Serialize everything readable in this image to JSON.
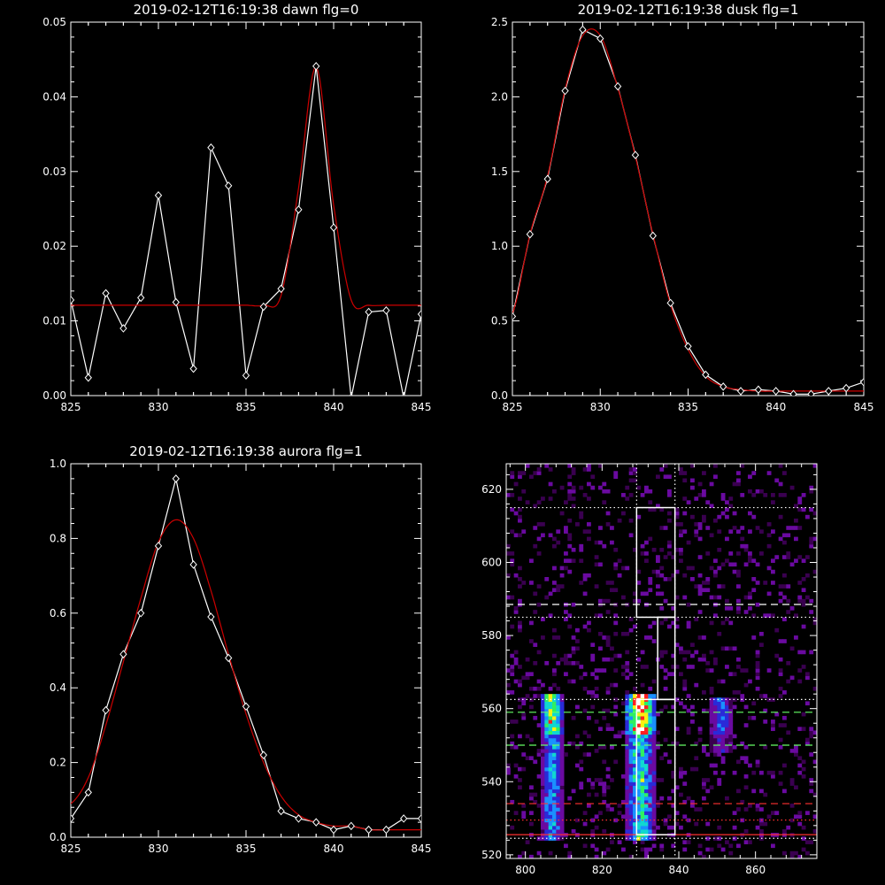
{
  "chart_data": [
    {
      "type": "line",
      "title": "2019-02-12T16:19:38 dawn flg=0",
      "xlim": [
        825,
        845
      ],
      "ylim": [
        0,
        0.05
      ],
      "xticks": [
        "825",
        "830",
        "835",
        "840",
        "845"
      ],
      "yticks": [
        "0.00",
        "0.01",
        "0.02",
        "0.03",
        "0.04",
        "0.05"
      ],
      "series": [
        {
          "color": "#ffffff",
          "markers": "diamond",
          "x": [
            825,
            826,
            827,
            828,
            829,
            830,
            831,
            832,
            833,
            834,
            835,
            836,
            837,
            838,
            839,
            840,
            841,
            842,
            843,
            844,
            845
          ],
          "y": [
            0.0128,
            0.0024,
            0.0137,
            0.009,
            0.0131,
            0.0268,
            0.0125,
            0.0036,
            0.0332,
            0.0281,
            0.0027,
            0.0119,
            0.0143,
            0.0249,
            0.0441,
            0.0225,
            -0.0003,
            0.0112,
            0.0114,
            -0.0003,
            0.0109
          ]
        },
        {
          "color": "#cc0000",
          "markers": "none",
          "x": [
            825,
            826,
            827,
            828,
            829,
            830,
            831,
            832,
            833,
            834,
            835,
            836,
            837,
            838,
            839,
            840,
            841,
            842,
            843,
            844,
            845
          ],
          "y": [
            0.0121,
            0.0121,
            0.0121,
            0.0121,
            0.0121,
            0.0121,
            0.0121,
            0.0121,
            0.0121,
            0.0121,
            0.0121,
            0.0121,
            0.0134,
            0.0278,
            0.044,
            0.0255,
            0.0128,
            0.0121,
            0.0121,
            0.0121,
            0.0121
          ]
        }
      ]
    },
    {
      "type": "line",
      "title": "2019-02-12T16:19:38 dusk flg=1",
      "xlim": [
        825,
        845
      ],
      "ylim": [
        0,
        2.5
      ],
      "xticks": [
        "825",
        "830",
        "835",
        "840",
        "845"
      ],
      "yticks": [
        "0.0",
        "0.5",
        "1.0",
        "1.5",
        "2.0",
        "2.5"
      ],
      "series": [
        {
          "color": "#ffffff",
          "markers": "diamond",
          "x": [
            825,
            826,
            827,
            828,
            829,
            830,
            831,
            832,
            833,
            834,
            835,
            836,
            837,
            838,
            839,
            840,
            841,
            842,
            843,
            844,
            845
          ],
          "y": [
            0.53,
            1.08,
            1.45,
            2.04,
            2.45,
            2.39,
            2.07,
            1.61,
            1.07,
            0.62,
            0.33,
            0.14,
            0.06,
            0.03,
            0.04,
            0.03,
            0.01,
            0.01,
            0.03,
            0.05,
            0.09
          ]
        },
        {
          "color": "#cc0000",
          "markers": "none",
          "x": [
            825,
            826,
            827,
            828,
            829,
            830,
            831,
            832,
            833,
            834,
            835,
            836,
            837,
            838,
            839,
            840,
            841,
            842,
            843,
            844,
            845
          ],
          "y": [
            0.55,
            1.08,
            1.47,
            2.05,
            2.41,
            2.41,
            2.06,
            1.6,
            1.08,
            0.61,
            0.31,
            0.13,
            0.06,
            0.04,
            0.03,
            0.03,
            0.03,
            0.03,
            0.03,
            0.03,
            0.03
          ]
        }
      ]
    },
    {
      "type": "line",
      "title": "2019-02-12T16:19:38 aurora flg=1",
      "xlim": [
        825,
        845
      ],
      "ylim": [
        0,
        1.0
      ],
      "xticks": [
        "825",
        "830",
        "835",
        "840",
        "845"
      ],
      "yticks": [
        "0.0",
        "0.2",
        "0.4",
        "0.6",
        "0.8",
        "1.0"
      ],
      "series": [
        {
          "color": "#ffffff",
          "markers": "diamond",
          "x": [
            825,
            826,
            827,
            828,
            829,
            830,
            831,
            832,
            833,
            834,
            835,
            836,
            837,
            838,
            839,
            840,
            841,
            842,
            843,
            844,
            845
          ],
          "y": [
            0.05,
            0.12,
            0.34,
            0.49,
            0.6,
            0.78,
            0.96,
            0.73,
            0.59,
            0.48,
            0.35,
            0.22,
            0.07,
            0.05,
            0.04,
            0.02,
            0.03,
            0.02,
            0.02,
            0.05,
            0.05
          ]
        },
        {
          "color": "#cc0000",
          "markers": "none",
          "x": [
            825,
            826,
            827,
            828,
            829,
            830,
            831,
            832,
            833,
            834,
            835,
            836,
            837,
            838,
            839,
            840,
            841,
            842,
            843,
            844,
            845
          ],
          "y": [
            0.09,
            0.16,
            0.3,
            0.47,
            0.64,
            0.79,
            0.85,
            0.8,
            0.66,
            0.49,
            0.33,
            0.2,
            0.11,
            0.06,
            0.04,
            0.03,
            0.03,
            0.02,
            0.02,
            0.02,
            0.02
          ]
        }
      ]
    },
    {
      "type": "heatmap",
      "xlim": [
        795,
        876
      ],
      "ylim": [
        519,
        627
      ],
      "xticks": [
        "800",
        "820",
        "840",
        "860"
      ],
      "yticks": [
        "520",
        "540",
        "560",
        "580",
        "600",
        "620"
      ],
      "colormap": [
        "#3a0050",
        "#6a0aa0",
        "#2a2ad8",
        "#1a90ff",
        "#10d8d0",
        "#30f060",
        "#f8f010",
        "#ff2020",
        "#ffffff"
      ],
      "emission_columns": [
        {
          "x": 807,
          "y_range": [
            524,
            563
          ],
          "peak": 0.75
        },
        {
          "x": 830,
          "y_range": [
            524,
            563
          ],
          "peak": 1.0
        },
        {
          "x": 851,
          "y_range": [
            548,
            562
          ],
          "peak": 0.35
        }
      ],
      "hlines": [
        {
          "y": 615,
          "style": "dotted",
          "color": "#ffffff"
        },
        {
          "y": 588.5,
          "style": "dashed",
          "color": "#ffffff"
        },
        {
          "y": 585,
          "style": "dotted",
          "color": "#ffffff"
        },
        {
          "y": 562.5,
          "style": "dotted",
          "color": "#ffffff"
        },
        {
          "y": 559,
          "style": "dashed",
          "color": "#66ff66"
        },
        {
          "y": 550,
          "style": "dashed",
          "color": "#66ff66"
        },
        {
          "y": 534,
          "style": "dashed",
          "color": "#ff3030"
        },
        {
          "y": 529.5,
          "style": "dotted",
          "color": "#ff3030"
        },
        {
          "y": 525.5,
          "style": "solid",
          "color": "#ff3030"
        },
        {
          "y": 524.5,
          "style": "dotted",
          "color": "#ffffff"
        }
      ],
      "vlines": [
        {
          "x": 829,
          "style": "dotted",
          "color": "#ffffff"
        },
        {
          "x": 839,
          "style": "dotted",
          "color": "#ffffff"
        }
      ],
      "boxes": [
        {
          "x": [
            829,
            839
          ],
          "y": [
            585,
            615
          ]
        },
        {
          "x": [
            834.5,
            839
          ],
          "y": [
            562.5,
            585
          ]
        },
        {
          "x": [
            829,
            839
          ],
          "y": [
            525.5,
            562.5
          ]
        }
      ]
    }
  ]
}
